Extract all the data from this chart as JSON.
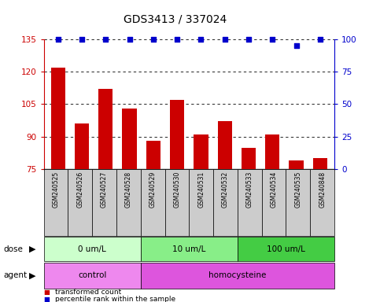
{
  "title": "GDS3413 / 337024",
  "samples": [
    "GSM240525",
    "GSM240526",
    "GSM240527",
    "GSM240528",
    "GSM240529",
    "GSM240530",
    "GSM240531",
    "GSM240532",
    "GSM240533",
    "GSM240534",
    "GSM240535",
    "GSM240848"
  ],
  "bar_values": [
    122,
    96,
    112,
    103,
    88,
    107,
    91,
    97,
    85,
    91,
    79,
    80
  ],
  "percentile_values": [
    100,
    100,
    100,
    100,
    100,
    100,
    100,
    100,
    100,
    100,
    95,
    100
  ],
  "bar_color": "#cc0000",
  "percentile_color": "#0000cc",
  "ylim_left": [
    75,
    135
  ],
  "ylim_right": [
    0,
    100
  ],
  "yticks_left": [
    75,
    90,
    105,
    120,
    135
  ],
  "yticks_right": [
    0,
    25,
    50,
    75,
    100
  ],
  "dose_groups": [
    {
      "label": "0 um/L",
      "start": 0,
      "end": 4,
      "color": "#ccffcc"
    },
    {
      "label": "10 um/L",
      "start": 4,
      "end": 8,
      "color": "#88ee88"
    },
    {
      "label": "100 um/L",
      "start": 8,
      "end": 12,
      "color": "#44cc44"
    }
  ],
  "agent_groups": [
    {
      "label": "control",
      "start": 0,
      "end": 4,
      "color": "#ee88ee"
    },
    {
      "label": "homocysteine",
      "start": 4,
      "end": 12,
      "color": "#dd55dd"
    }
  ],
  "legend_items": [
    {
      "label": "transformed count",
      "color": "#cc0000"
    },
    {
      "label": "percentile rank within the sample",
      "color": "#0000cc"
    }
  ],
  "dose_label": "dose",
  "agent_label": "agent",
  "background_color": "#ffffff",
  "sample_bg_color": "#cccccc"
}
